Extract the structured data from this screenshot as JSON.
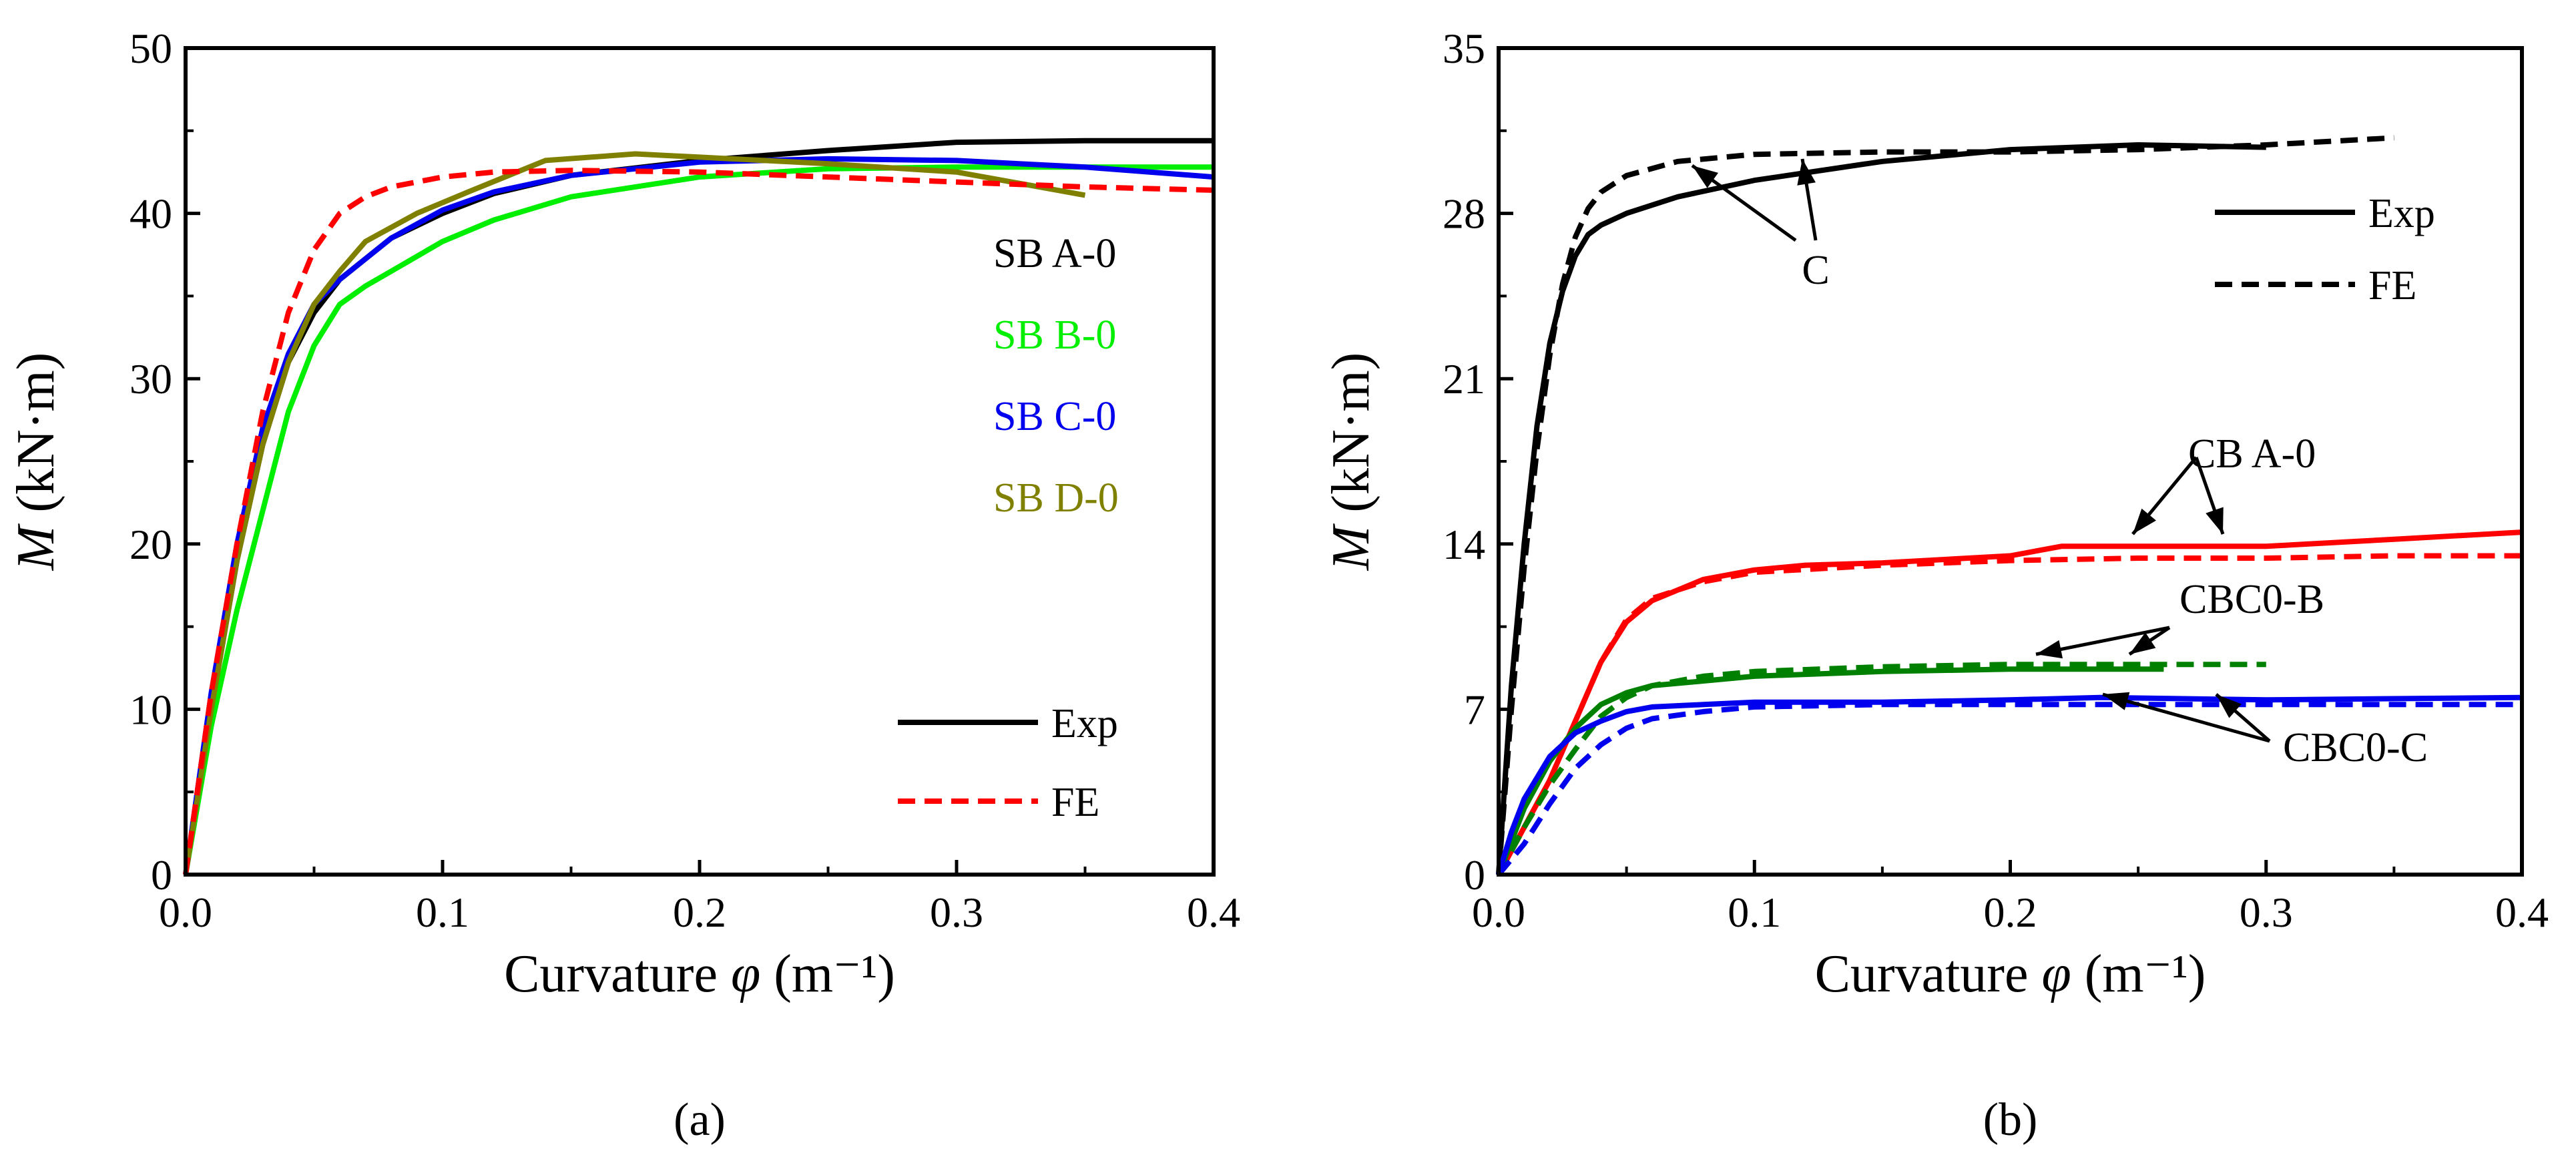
{
  "captions": [
    "(a)",
    "(b)"
  ],
  "chart_data": [
    {
      "type": "line",
      "caption": "(a)",
      "xlabel": "Curvature φ (m⁻¹)",
      "ylabel": "M (kN·m)",
      "xlim": [
        0,
        0.4
      ],
      "ylim": [
        0,
        50
      ],
      "xticks": [
        "0.0",
        "0.1",
        "0.2",
        "0.3",
        "0.4"
      ],
      "yticks": [
        "0",
        "10",
        "20",
        "30",
        "40",
        "50"
      ],
      "grid": false,
      "legend": {
        "position": "bottom-right",
        "entries": [
          {
            "label": "Exp",
            "style": "solid"
          },
          {
            "label": "FE",
            "style": "dashed"
          }
        ]
      },
      "specimen_labels": [
        {
          "text": "SB A-0",
          "color": "#000000"
        },
        {
          "text": "SB B-0",
          "color": "#00ee00"
        },
        {
          "text": "SB C-0",
          "color": "#0000ee"
        },
        {
          "text": "SB D-0",
          "color": "#808000"
        }
      ],
      "series": [
        {
          "name": "SB A-0",
          "kind": "Exp",
          "color": "#000000",
          "dashed": false,
          "x": [
            0,
            0.01,
            0.02,
            0.03,
            0.04,
            0.05,
            0.06,
            0.08,
            0.1,
            0.12,
            0.15,
            0.2,
            0.25,
            0.3,
            0.35,
            0.4
          ],
          "y": [
            0,
            10,
            19,
            26,
            31,
            34,
            36,
            38.5,
            40,
            41.2,
            42.3,
            43.2,
            43.8,
            44.3,
            44.4,
            44.4
          ]
        },
        {
          "name": "SB B-0",
          "kind": "Exp",
          "color": "#00ee00",
          "dashed": false,
          "x": [
            0,
            0.01,
            0.02,
            0.03,
            0.04,
            0.05,
            0.06,
            0.07,
            0.08,
            0.1,
            0.12,
            0.15,
            0.2,
            0.25,
            0.3,
            0.35,
            0.4
          ],
          "y": [
            0,
            9,
            16,
            22,
            28,
            32,
            34.5,
            35.6,
            36.5,
            38.3,
            39.6,
            41,
            42.2,
            42.7,
            42.8,
            42.8,
            42.8
          ]
        },
        {
          "name": "SB C-0",
          "kind": "Exp",
          "color": "#0000ee",
          "dashed": false,
          "x": [
            0,
            0.01,
            0.02,
            0.03,
            0.04,
            0.05,
            0.06,
            0.08,
            0.1,
            0.12,
            0.15,
            0.2,
            0.25,
            0.3,
            0.35,
            0.4
          ],
          "y": [
            0,
            11,
            20,
            27,
            31.5,
            34.5,
            36,
            38.5,
            40.2,
            41.3,
            42.3,
            43.1,
            43.3,
            43.2,
            42.8,
            42.2
          ]
        },
        {
          "name": "SB D-0",
          "kind": "Exp",
          "color": "#808000",
          "dashed": false,
          "x": [
            0,
            0.01,
            0.02,
            0.03,
            0.04,
            0.05,
            0.06,
            0.07,
            0.09,
            0.11,
            0.14,
            0.175,
            0.2,
            0.25,
            0.3,
            0.35
          ],
          "y": [
            0,
            10,
            19,
            26,
            31,
            34.5,
            36.5,
            38.3,
            40,
            41.3,
            43.2,
            43.6,
            43.4,
            43,
            42.5,
            41.1
          ]
        },
        {
          "name": "FE",
          "kind": "FE",
          "color": "#ff0000",
          "dashed": true,
          "x": [
            0,
            0.01,
            0.02,
            0.03,
            0.04,
            0.05,
            0.06,
            0.07,
            0.08,
            0.1,
            0.12,
            0.15,
            0.2,
            0.25,
            0.3,
            0.35,
            0.4
          ],
          "y": [
            0,
            11,
            20,
            28,
            34,
            37.8,
            40,
            41,
            41.6,
            42.2,
            42.5,
            42.6,
            42.5,
            42.2,
            41.9,
            41.6,
            41.4
          ]
        }
      ]
    },
    {
      "type": "line",
      "caption": "(b)",
      "xlabel": "Curvature φ (m⁻¹)",
      "ylabel": "M (kN·m)",
      "xlim": [
        0,
        0.4
      ],
      "ylim": [
        0,
        35
      ],
      "xticks": [
        "0.0",
        "0.1",
        "0.2",
        "0.3",
        "0.4"
      ],
      "yticks": [
        "0",
        "7",
        "14",
        "21",
        "28",
        "35"
      ],
      "grid": false,
      "legend": {
        "position": "top-right",
        "entries": [
          {
            "label": "Exp",
            "style": "solid"
          },
          {
            "label": "FE",
            "style": "dashed"
          }
        ]
      },
      "annotations": [
        "C",
        "CB A-0",
        "CBC0-B",
        "CBC0-C"
      ],
      "series": [
        {
          "name": "C",
          "kind": "Exp",
          "color": "#000000",
          "dashed": false,
          "x": [
            0,
            0.005,
            0.01,
            0.015,
            0.02,
            0.025,
            0.03,
            0.035,
            0.04,
            0.05,
            0.07,
            0.1,
            0.15,
            0.2,
            0.25,
            0.3
          ],
          "y": [
            0,
            8,
            14,
            19,
            22.5,
            24.7,
            26.2,
            27.1,
            27.5,
            28,
            28.7,
            29.4,
            30.2,
            30.7,
            30.9,
            30.8
          ]
        },
        {
          "name": "C",
          "kind": "FE",
          "color": "#000000",
          "dashed": true,
          "x": [
            0,
            0.005,
            0.01,
            0.015,
            0.02,
            0.025,
            0.03,
            0.035,
            0.04,
            0.05,
            0.07,
            0.1,
            0.15,
            0.2,
            0.25,
            0.3,
            0.35
          ],
          "y": [
            0,
            7,
            13,
            18,
            22,
            25,
            27,
            28.2,
            28.9,
            29.6,
            30.2,
            30.5,
            30.6,
            30.6,
            30.7,
            30.9,
            31.2
          ]
        },
        {
          "name": "CB A-0",
          "kind": "Exp",
          "color": "#ff0000",
          "dashed": false,
          "x": [
            0,
            0.01,
            0.02,
            0.03,
            0.04,
            0.05,
            0.06,
            0.08,
            0.1,
            0.12,
            0.15,
            0.2,
            0.22,
            0.3,
            0.35,
            0.4
          ],
          "y": [
            0,
            2,
            4,
            6.5,
            9,
            10.7,
            11.6,
            12.5,
            12.9,
            13.1,
            13.2,
            13.5,
            13.9,
            13.9,
            14.2,
            14.5
          ]
        },
        {
          "name": "CB A-0",
          "kind": "FE",
          "color": "#ff0000",
          "dashed": true,
          "x": [
            0,
            0.01,
            0.02,
            0.03,
            0.04,
            0.05,
            0.06,
            0.08,
            0.1,
            0.15,
            0.2,
            0.25,
            0.3,
            0.35,
            0.4
          ],
          "y": [
            0,
            2,
            4,
            6.5,
            9,
            10.8,
            11.7,
            12.4,
            12.8,
            13.1,
            13.3,
            13.4,
            13.4,
            13.5,
            13.5
          ]
        },
        {
          "name": "CBC0-B",
          "kind": "Exp",
          "color": "#008000",
          "dashed": false,
          "x": [
            0,
            0.01,
            0.02,
            0.03,
            0.04,
            0.05,
            0.06,
            0.08,
            0.1,
            0.15,
            0.2,
            0.26
          ],
          "y": [
            0,
            2.8,
            4.8,
            6.2,
            7.2,
            7.7,
            8,
            8.2,
            8.4,
            8.6,
            8.7,
            8.7
          ]
        },
        {
          "name": "CBC0-B",
          "kind": "FE",
          "color": "#008000",
          "dashed": true,
          "x": [
            0,
            0.01,
            0.02,
            0.03,
            0.04,
            0.05,
            0.06,
            0.08,
            0.1,
            0.15,
            0.2,
            0.25,
            0.3
          ],
          "y": [
            0,
            2,
            3.8,
            5.3,
            6.7,
            7.5,
            8,
            8.4,
            8.6,
            8.8,
            8.9,
            8.9,
            8.9
          ]
        },
        {
          "name": "CBC0-C",
          "kind": "Exp",
          "color": "#0000ee",
          "dashed": false,
          "x": [
            0,
            0.005,
            0.01,
            0.02,
            0.03,
            0.04,
            0.05,
            0.06,
            0.08,
            0.1,
            0.15,
            0.2,
            0.235,
            0.3,
            0.4
          ],
          "y": [
            0,
            1.8,
            3.2,
            5,
            6,
            6.5,
            6.9,
            7.1,
            7.2,
            7.3,
            7.3,
            7.4,
            7.5,
            7.4,
            7.5
          ]
        },
        {
          "name": "CBC0-C",
          "kind": "FE",
          "color": "#0000ee",
          "dashed": true,
          "x": [
            0,
            0.01,
            0.02,
            0.03,
            0.04,
            0.05,
            0.06,
            0.08,
            0.1,
            0.15,
            0.2,
            0.3,
            0.4
          ],
          "y": [
            0,
            1.3,
            3,
            4.5,
            5.5,
            6.2,
            6.6,
            6.9,
            7.1,
            7.2,
            7.2,
            7.2,
            7.2
          ]
        }
      ]
    }
  ]
}
